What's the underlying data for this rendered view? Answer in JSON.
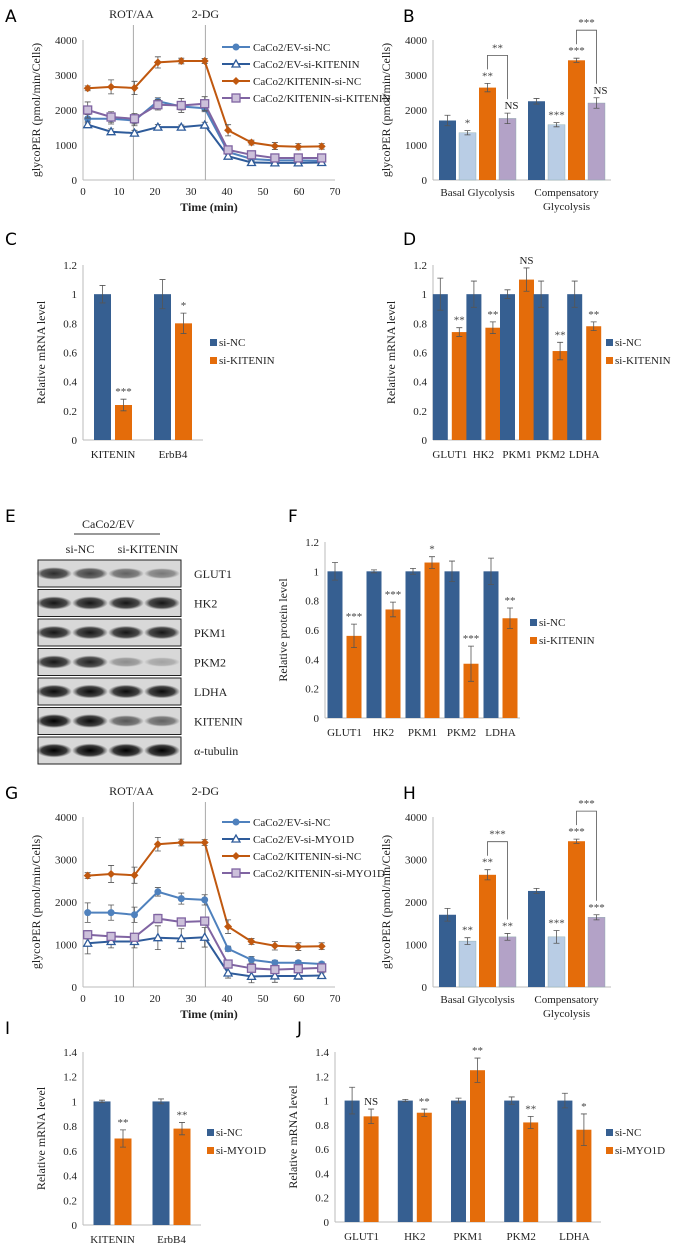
{
  "colors": {
    "dark_blue": "#365f91",
    "light_blue": "#b9cde5",
    "orange": "#e46c0a",
    "lavender": "#b3a2c7",
    "line_blue": "#4f81bd",
    "line_navy": "#2e5b9a",
    "line_orange": "#c0580f",
    "line_purple": "#8064a2",
    "purple_fill": "#ccc0da"
  },
  "chart_data": [
    {
      "panel": "A",
      "type": "line",
      "xlabel": "Time (min)",
      "ylabel": "glycoPER (pmol/min/Cells)",
      "xlim": [
        0,
        70
      ],
      "ylim": [
        0,
        4000
      ],
      "xticks": [
        "0",
        "10",
        "20",
        "30",
        "40",
        "50",
        "60",
        "70"
      ],
      "yticks": [
        "0",
        "1000",
        "2000",
        "3000",
        "4000"
      ],
      "injections": [
        {
          "label": "ROT/AA",
          "time": 14
        },
        {
          "label": "2-DG",
          "time": 34
        }
      ],
      "x": [
        1.3,
        7.8,
        14.3,
        20.8,
        27.3,
        33.8,
        40.3,
        46.8,
        53.3,
        59.8,
        66.3
      ],
      "series": [
        {
          "name": "CaCo2/EV-si-NC",
          "marker": "circle",
          "values": [
            1750,
            1750,
            1700,
            2250,
            2100,
            2050,
            800,
            600,
            560,
            560,
            550
          ],
          "err": [
            120,
            150,
            150,
            100,
            100,
            100,
            60,
            50,
            40,
            40,
            40
          ]
        },
        {
          "name": "CaCo2/EV-si-KITENIN",
          "marker": "triangle",
          "values": [
            1580,
            1380,
            1340,
            1510,
            1510,
            1570,
            680,
            500,
            490,
            490,
            500
          ],
          "err": [
            80,
            80,
            80,
            80,
            60,
            80,
            50,
            40,
            40,
            40,
            40
          ]
        },
        {
          "name": "CaCo2/KITENIN-si-NC",
          "marker": "diamond",
          "values": [
            2620,
            2660,
            2630,
            3360,
            3400,
            3400,
            1420,
            1070,
            970,
            950,
            960
          ],
          "err": [
            70,
            200,
            190,
            160,
            80,
            70,
            160,
            70,
            100,
            90,
            80
          ]
        },
        {
          "name": "CaCo2/KITENIN-si-KITENIN",
          "marker": "square",
          "values": [
            2000,
            1800,
            1750,
            2150,
            2130,
            2180,
            860,
            720,
            630,
            630,
            630
          ],
          "err": [
            230,
            150,
            150,
            150,
            200,
            200,
            80,
            100,
            80,
            70,
            60
          ]
        }
      ]
    },
    {
      "panel": "B",
      "type": "bar",
      "ylabel": "glycoPER (pmol/min/Cells)",
      "ylim": [
        0,
        4000
      ],
      "yticks": [
        "0",
        "1000",
        "2000",
        "3000",
        "4000"
      ],
      "categories": [
        "Basal Glycolysis",
        "Compensatory Glycolysis"
      ],
      "series": [
        {
          "values": [
            1700,
            2250
          ],
          "err": [
            150,
            80
          ],
          "color": "dark_blue",
          "sig": [
            "",
            ""
          ]
        },
        {
          "values": [
            1350,
            1580
          ],
          "err": [
            60,
            60
          ],
          "color": "light_blue",
          "sig": [
            "*",
            "***"
          ]
        },
        {
          "values": [
            2640,
            3420
          ],
          "err": [
            120,
            60
          ],
          "color": "orange",
          "sig": [
            "**",
            "***"
          ]
        },
        {
          "values": [
            1760,
            2200
          ],
          "err": [
            150,
            150
          ],
          "color": "lavender",
          "sig": [
            "NS",
            "NS"
          ]
        }
      ],
      "brackets": [
        "**",
        "***"
      ]
    },
    {
      "panel": "C",
      "type": "bar",
      "ylabel": "Relative mRNA level",
      "ylim": [
        0,
        1.2
      ],
      "yticks": [
        "0",
        "0.2",
        "0.4",
        "0.6",
        "0.8",
        "1",
        "1.2"
      ],
      "categories": [
        "KITENIN",
        "ErbB4"
      ],
      "series": [
        {
          "name": "si-NC",
          "values": [
            1,
            1
          ],
          "err": [
            0.06,
            0.1
          ],
          "color": "dark_blue",
          "sig": [
            "",
            ""
          ]
        },
        {
          "name": "si-KITENIN",
          "values": [
            0.24,
            0.8
          ],
          "err": [
            0.04,
            0.07
          ],
          "color": "orange",
          "sig": [
            "***",
            "*"
          ]
        }
      ]
    },
    {
      "panel": "D",
      "type": "bar",
      "ylabel": "Relative mRNA level",
      "ylim": [
        0,
        1.2
      ],
      "yticks": [
        "0",
        "0.2",
        "0.4",
        "0.6",
        "0.8",
        "1",
        "1.2"
      ],
      "categories": [
        "GLUT1",
        "HK2",
        "PKM1",
        "PKM2",
        "LDHA"
      ],
      "series": [
        {
          "name": "si-NC",
          "values": [
            1,
            1,
            1,
            1,
            1
          ],
          "err": [
            0.11,
            0.09,
            0.03,
            0.09,
            0.09
          ],
          "color": "dark_blue",
          "sig": [
            "",
            "",
            "",
            "",
            ""
          ]
        },
        {
          "name": "si-KITENIN",
          "values": [
            0.74,
            0.77,
            1.1,
            0.61,
            0.78
          ],
          "err": [
            0.03,
            0.04,
            0.08,
            0.06,
            0.03
          ],
          "color": "orange",
          "sig": [
            "**",
            "**",
            "NS",
            "**",
            "**"
          ]
        }
      ]
    },
    {
      "panel": "F",
      "type": "bar",
      "ylabel": "Relative protein level",
      "ylim": [
        0,
        1.2
      ],
      "yticks": [
        "0",
        "0.2",
        "0.4",
        "0.6",
        "0.8",
        "1",
        "1.2"
      ],
      "categories": [
        "GLUT1",
        "HK2",
        "PKM1",
        "PKM2",
        "LDHA"
      ],
      "series": [
        {
          "name": "si-NC",
          "values": [
            1,
            1,
            1,
            1,
            1
          ],
          "err": [
            0.06,
            0.01,
            0.02,
            0.07,
            0.09
          ],
          "color": "dark_blue",
          "sig": [
            "",
            "",
            "",
            "",
            ""
          ]
        },
        {
          "name": "si-KITENIN",
          "values": [
            0.56,
            0.74,
            1.06,
            0.37,
            0.68
          ],
          "err": [
            0.08,
            0.05,
            0.04,
            0.12,
            0.07
          ],
          "color": "orange",
          "sig": [
            "***",
            "***",
            "*",
            "***",
            "**"
          ]
        }
      ]
    },
    {
      "panel": "G",
      "type": "line",
      "xlabel": "Time (min)",
      "ylabel": "glycoPER (pmol/min/Cells)",
      "xlim": [
        0,
        70
      ],
      "ylim": [
        0,
        4000
      ],
      "xticks": [
        "0",
        "10",
        "20",
        "30",
        "40",
        "50",
        "60",
        "70"
      ],
      "yticks": [
        "0",
        "1000",
        "2000",
        "3000",
        "4000"
      ],
      "injections": [
        {
          "label": "ROT/AA",
          "time": 14
        },
        {
          "label": "2-DG",
          "time": 34
        }
      ],
      "x": [
        1.3,
        7.8,
        14.3,
        20.8,
        27.3,
        33.8,
        40.3,
        46.8,
        53.3,
        59.8,
        66.3
      ],
      "series": [
        {
          "name": "CaCo2/EV-si-NC",
          "marker": "circle",
          "values": [
            1750,
            1750,
            1700,
            2240,
            2080,
            2050,
            900,
            640,
            570,
            570,
            540
          ],
          "err": [
            230,
            180,
            180,
            100,
            130,
            120,
            60,
            80,
            60,
            50,
            50
          ]
        },
        {
          "name": "CaCo2/EV-si-MYO1D",
          "marker": "triangle",
          "values": [
            1030,
            1070,
            1070,
            1160,
            1140,
            1170,
            330,
            250,
            260,
            260,
            270
          ],
          "err": [
            250,
            150,
            150,
            280,
            230,
            230,
            120,
            150,
            150,
            80,
            60
          ]
        },
        {
          "name": "CaCo2/KITENIN-si-NC",
          "marker": "diamond",
          "values": [
            2620,
            2660,
            2630,
            3360,
            3400,
            3400,
            1420,
            1070,
            970,
            950,
            960
          ],
          "err": [
            70,
            200,
            190,
            160,
            80,
            70,
            160,
            70,
            100,
            90,
            80
          ]
        },
        {
          "name": "CaCo2/KITENIN-si-MYO1D",
          "marker": "square",
          "values": [
            1230,
            1190,
            1170,
            1610,
            1530,
            1550,
            540,
            440,
            410,
            430,
            450
          ],
          "err": [
            100,
            60,
            60,
            100,
            80,
            80,
            50,
            40,
            40,
            40,
            40
          ]
        }
      ]
    },
    {
      "panel": "H",
      "type": "bar",
      "ylabel": "glycoPER (pmol/min/Cells)",
      "ylim": [
        0,
        4000
      ],
      "yticks": [
        "0",
        "1000",
        "2000",
        "3000",
        "4000"
      ],
      "categories": [
        "Basal Glycolysis",
        "Compensatory Glycolysis"
      ],
      "series": [
        {
          "values": [
            1700,
            2260
          ],
          "err": [
            150,
            60
          ],
          "color": "dark_blue",
          "sig": [
            "",
            ""
          ]
        },
        {
          "values": [
            1080,
            1180
          ],
          "err": [
            80,
            150
          ],
          "color": "light_blue",
          "sig": [
            "**",
            "***"
          ]
        },
        {
          "values": [
            2640,
            3430
          ],
          "err": [
            120,
            50
          ],
          "color": "orange",
          "sig": [
            "**",
            "***"
          ]
        },
        {
          "values": [
            1180,
            1640
          ],
          "err": [
            80,
            60
          ],
          "color": "lavender",
          "sig": [
            "**",
            "***"
          ]
        }
      ],
      "brackets": [
        "***",
        "***"
      ]
    },
    {
      "panel": "I",
      "type": "bar",
      "ylabel": "Relative mRNA level",
      "ylim": [
        0,
        1.4
      ],
      "yticks": [
        "0",
        "0.2",
        "0.4",
        "0.6",
        "0.8",
        "1",
        "1.2",
        "1.4"
      ],
      "categories": [
        "KITENIN",
        "ErbB4"
      ],
      "series": [
        {
          "name": "si-NC",
          "values": [
            1,
            1
          ],
          "err": [
            0.01,
            0.02
          ],
          "color": "dark_blue",
          "sig": [
            "",
            ""
          ]
        },
        {
          "name": "si-MYO1D",
          "values": [
            0.7,
            0.78
          ],
          "err": [
            0.07,
            0.05
          ],
          "color": "orange",
          "sig": [
            "**",
            "**"
          ]
        }
      ]
    },
    {
      "panel": "J",
      "type": "bar",
      "ylabel": "Relative mRNA level",
      "ylim": [
        0,
        1.4
      ],
      "yticks": [
        "0",
        "0.2",
        "0.4",
        "0.6",
        "0.8",
        "1",
        "1.2",
        "1.4"
      ],
      "categories": [
        "GLUT1",
        "HK2",
        "PKM1",
        "PKM2",
        "LDHA"
      ],
      "series": [
        {
          "name": "si-NC",
          "values": [
            1,
            1,
            1,
            1,
            1
          ],
          "err": [
            0.11,
            0.01,
            0.02,
            0.03,
            0.06
          ],
          "color": "dark_blue",
          "sig": [
            "",
            "",
            "",
            "",
            ""
          ]
        },
        {
          "name": "si-MYO1D",
          "values": [
            0.87,
            0.9,
            1.25,
            0.82,
            0.76
          ],
          "err": [
            0.06,
            0.03,
            0.1,
            0.05,
            0.13
          ],
          "color": "orange",
          "sig": [
            "NS",
            "**",
            "**",
            "**",
            "*"
          ]
        }
      ]
    }
  ],
  "blot": {
    "panel": "E",
    "group_label": "CaCo2/EV",
    "lane_labels": [
      "si-NC",
      "si-KITENIN"
    ],
    "rows": [
      {
        "label": "GLUT1",
        "intensity": [
          0.8,
          0.7,
          0.55,
          0.45
        ]
      },
      {
        "label": "HK2",
        "intensity": [
          0.9,
          0.9,
          0.9,
          0.9
        ]
      },
      {
        "label": "PKM1",
        "intensity": [
          0.9,
          0.9,
          0.9,
          0.9
        ]
      },
      {
        "label": "PKM2",
        "intensity": [
          0.9,
          0.85,
          0.35,
          0.25
        ]
      },
      {
        "label": "LDHA",
        "intensity": [
          0.95,
          0.95,
          0.95,
          0.95
        ]
      },
      {
        "label": "KITENIN",
        "intensity": [
          1,
          0.95,
          0.6,
          0.55
        ]
      },
      {
        "label": "α-tubulin",
        "intensity": [
          1,
          1,
          1,
          1
        ]
      }
    ]
  }
}
